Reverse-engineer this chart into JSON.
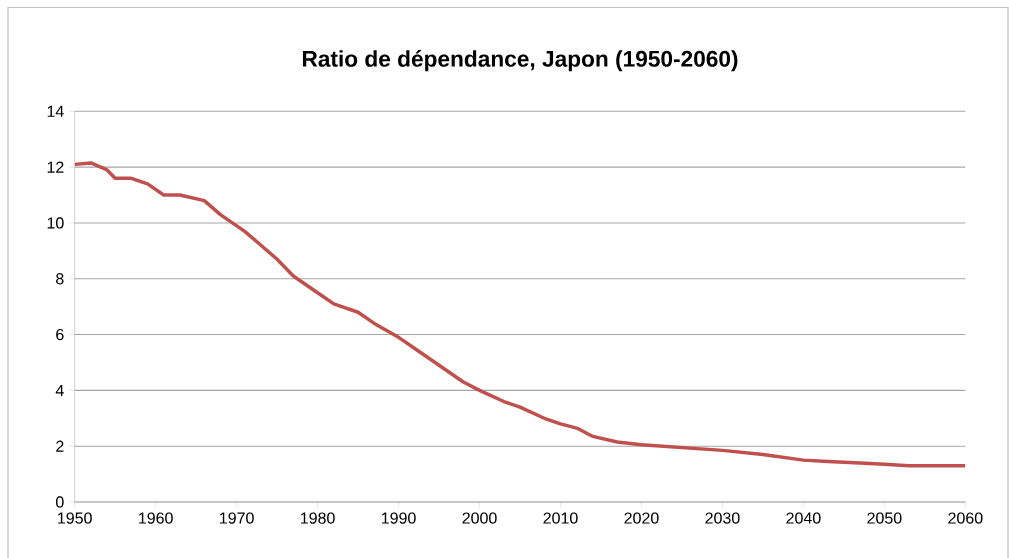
{
  "chart_data": {
    "type": "line",
    "title": "Ratio de dépendance, Japon (1950-2060)",
    "x": [
      1950,
      1952,
      1954,
      1955,
      1957,
      1959,
      1961,
      1963,
      1966,
      1968,
      1971,
      1973,
      1975,
      1977,
      1980,
      1982,
      1985,
      1987,
      1990,
      1992,
      1995,
      1998,
      2000,
      2003,
      2005,
      2008,
      2010,
      2012,
      2014,
      2017,
      2020,
      2025,
      2030,
      2035,
      2040,
      2043,
      2047,
      2050,
      2053,
      2060
    ],
    "series": [
      {
        "color": "#c0504d",
        "values": [
          12.1,
          12.15,
          11.9,
          11.6,
          11.6,
          11.4,
          11.0,
          11.0,
          10.8,
          10.3,
          9.7,
          9.2,
          8.7,
          8.1,
          7.5,
          7.1,
          6.8,
          6.4,
          5.9,
          5.5,
          4.9,
          4.3,
          4.0,
          3.6,
          3.4,
          3.0,
          2.8,
          2.65,
          2.35,
          2.15,
          2.05,
          1.95,
          1.85,
          1.7,
          1.5,
          1.45,
          1.4,
          1.35,
          1.3,
          1.3
        ]
      }
    ],
    "xlim": [
      1950,
      2060
    ],
    "xticks": [
      1950,
      1960,
      1970,
      1980,
      1990,
      2000,
      2010,
      2020,
      2030,
      2040,
      2050,
      2060
    ],
    "ylim": [
      0,
      14
    ],
    "yticks": [
      0,
      2,
      4,
      6,
      8,
      10,
      12,
      14
    ],
    "grid": "y",
    "marker": "none",
    "line_style": "solid"
  }
}
